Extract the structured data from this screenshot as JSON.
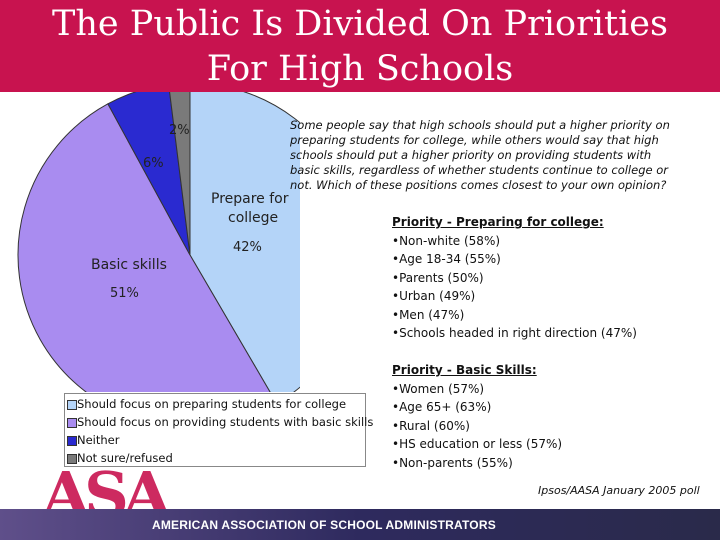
{
  "slide": {
    "title_line1": "The Public Is Divided On Priorities",
    "title_line2": "For High Schools",
    "question": "Some people say that high schools should put a higher priority on preparing students for college, while others would say that high schools should put a higher priority on providing students with basic skills, regardless of whether students continue to college or not. Which of these positions comes closest to your own opinion?",
    "source": "Ipsos/AASA January 2005 poll",
    "footer": "AMERICAN ASSOCIATION OF SCHOOL ADMINISTRATORS",
    "logo_text": "ASA"
  },
  "chart_data": {
    "type": "pie",
    "title": "",
    "slices": [
      {
        "name": "Prepare for college",
        "legend": "Should focus on preparing students for college",
        "value": 42,
        "label": "42%",
        "color": "#b4d4f8"
      },
      {
        "name": "Basic skills",
        "legend": "Should focus on providing students with basic skills",
        "value": 51,
        "label": "51%",
        "color": "#a98cf0"
      },
      {
        "name": "Neither",
        "legend": "Neither",
        "value": 6,
        "label": "6%",
        "color": "#2a2ad0"
      },
      {
        "name": "Not sure/refused",
        "legend": "Not sure/refused",
        "value": 2,
        "label": "2%",
        "color": "#7a7a7a"
      }
    ],
    "slice_name_labels": {
      "prepare_line1": "Prepare for",
      "prepare_line2": "college",
      "basic": "Basic skills"
    },
    "legend_position": "bottom-left"
  },
  "college_block": {
    "heading": "Priority - Preparing for college:",
    "items": [
      "•Non-white (58%)",
      "•Age 18-34 (55%)",
      "•Parents (50%)",
      "•Urban (49%)",
      "•Men (47%)",
      "•Schools headed in right direction (47%)"
    ]
  },
  "basic_block": {
    "heading": "Priority - Basic Skills:",
    "items": [
      "•Women (57%)",
      "•Age 65+ (63%)",
      "•Rural (60%)",
      "•HS education or less (57%)",
      "•Non-parents (55%)"
    ]
  }
}
